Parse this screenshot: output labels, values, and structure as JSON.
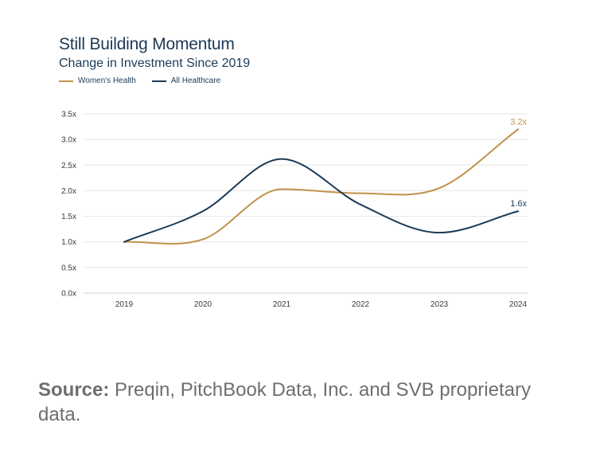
{
  "chart_data": {
    "type": "line",
    "title": "Still Building Momentum",
    "subtitle": "Change in Investment Since 2019",
    "x": [
      "2019",
      "2020",
      "2021",
      "2022",
      "2023",
      "2024"
    ],
    "y_ticks": [
      "0.0x",
      "0.5x",
      "1.0x",
      "1.5x",
      "2.0x",
      "2.5x",
      "3.0x",
      "3.5x"
    ],
    "ylim": [
      0,
      3.5
    ],
    "grid": true,
    "legend_position": "top-left",
    "series": [
      {
        "name": "Women's Health",
        "color": "#c0924a",
        "values": [
          1.0,
          1.05,
          2.03,
          1.95,
          2.05,
          3.2
        ],
        "end_label": "3.2x"
      },
      {
        "name": "All Healthcare",
        "color": "#1b3a57",
        "values": [
          1.0,
          1.6,
          2.62,
          1.73,
          1.18,
          1.6
        ],
        "end_label": "1.6x"
      }
    ]
  },
  "source": {
    "label": "Source:",
    "text": " Preqin, PitchBook Data, Inc. and SVB proprietary data."
  }
}
